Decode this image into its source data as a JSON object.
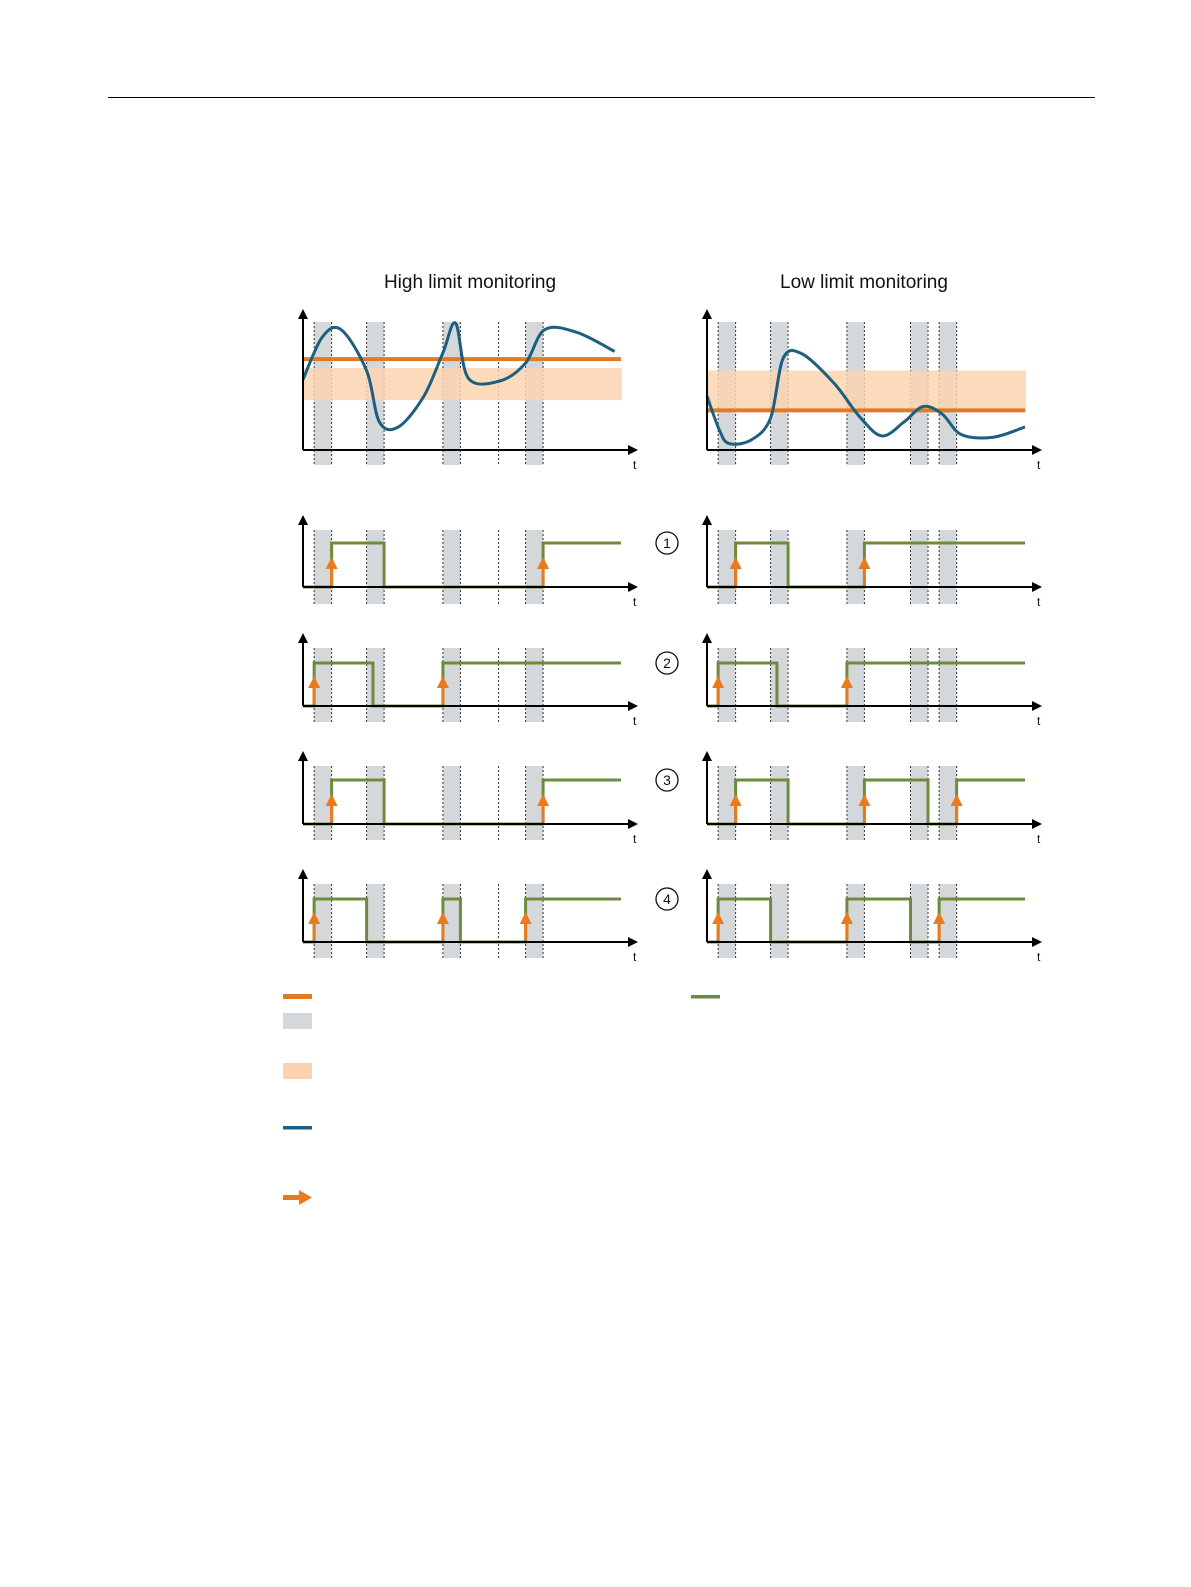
{
  "colors": {
    "limit_line": "#e07a23",
    "hysteresis_band": "#fbd3b0",
    "measured_value": "#1c5f7e",
    "output_signal": "#6e8b3d",
    "change_arrow": "#e97a1e",
    "delay_window": "#d5d8db"
  },
  "columns": [
    {
      "title": "High limit monitoring",
      "t_label": "t",
      "top_chart": {
        "band_range": [
          0.39,
          0.64
        ],
        "limit_level": 0.71,
        "windows": [
          [
            0.035,
            0.09
          ],
          [
            0.2,
            0.255
          ],
          [
            0.44,
            0.495
          ],
          [
            0.7,
            0.755
          ]
        ],
        "extra_dashed_lines": [
          0.615
        ],
        "curve": [
          [
            0.0,
            0.55
          ],
          [
            0.06,
            0.88
          ],
          [
            0.12,
            0.94
          ],
          [
            0.2,
            0.62
          ],
          [
            0.24,
            0.22
          ],
          [
            0.3,
            0.18
          ],
          [
            0.38,
            0.42
          ],
          [
            0.44,
            0.76
          ],
          [
            0.48,
            0.99
          ],
          [
            0.52,
            0.56
          ],
          [
            0.62,
            0.54
          ],
          [
            0.7,
            0.68
          ],
          [
            0.76,
            0.94
          ],
          [
            0.86,
            0.92
          ],
          [
            0.98,
            0.77
          ]
        ]
      },
      "timing_rows": [
        {
          "levels": [
            [
              0,
              0
            ],
            [
              0.09,
              1
            ],
            [
              0.255,
              0
            ],
            [
              0.755,
              1
            ],
            [
              1.0,
              1
            ]
          ],
          "arrows": [
            0.09,
            0.755
          ]
        },
        {
          "levels": [
            [
              0,
              0
            ],
            [
              0.035,
              1
            ],
            [
              0.22,
              0
            ],
            [
              0.44,
              1
            ],
            [
              1.0,
              1
            ]
          ],
          "arrows": [
            0.035,
            0.44
          ]
        },
        {
          "levels": [
            [
              0,
              0
            ],
            [
              0.09,
              1
            ],
            [
              0.255,
              0
            ],
            [
              0.755,
              1
            ],
            [
              1.0,
              1
            ]
          ],
          "arrows": [
            0.09,
            0.755
          ]
        },
        {
          "levels": [
            [
              0,
              0
            ],
            [
              0.035,
              1
            ],
            [
              0.2,
              0
            ],
            [
              0.44,
              1
            ],
            [
              0.495,
              0
            ],
            [
              0.7,
              1
            ],
            [
              1.0,
              1
            ]
          ],
          "arrows": [
            0.035,
            0.44,
            0.7
          ]
        }
      ],
      "row_windows": [
        [
          0.035,
          0.09
        ],
        [
          0.2,
          0.255
        ],
        [
          0.44,
          0.495
        ],
        [
          0.7,
          0.755
        ]
      ],
      "row_dashed_lines": [
        0.615
      ]
    },
    {
      "title": "Low limit monitoring",
      "t_label": "t",
      "top_chart": {
        "band_range": [
          0.3,
          0.62
        ],
        "limit_level": 0.31,
        "windows": [
          [
            0.035,
            0.09
          ],
          [
            0.2,
            0.255
          ],
          [
            0.44,
            0.495
          ],
          [
            0.64,
            0.695
          ],
          [
            0.73,
            0.785
          ]
        ],
        "extra_dashed_lines": [],
        "curve": [
          [
            0.0,
            0.42
          ],
          [
            0.04,
            0.15
          ],
          [
            0.07,
            0.05
          ],
          [
            0.14,
            0.08
          ],
          [
            0.2,
            0.25
          ],
          [
            0.24,
            0.72
          ],
          [
            0.3,
            0.75
          ],
          [
            0.4,
            0.52
          ],
          [
            0.48,
            0.26
          ],
          [
            0.55,
            0.11
          ],
          [
            0.62,
            0.22
          ],
          [
            0.68,
            0.34
          ],
          [
            0.74,
            0.28
          ],
          [
            0.8,
            0.12
          ],
          [
            0.9,
            0.1
          ],
          [
            1.0,
            0.18
          ]
        ]
      },
      "timing_rows": [
        {
          "levels": [
            [
              0,
              0
            ],
            [
              0.09,
              1
            ],
            [
              0.255,
              0
            ],
            [
              0.495,
              1
            ],
            [
              1.0,
              1
            ]
          ],
          "arrows": [
            0.09,
            0.495
          ]
        },
        {
          "levels": [
            [
              0,
              0
            ],
            [
              0.035,
              1
            ],
            [
              0.22,
              0
            ],
            [
              0.44,
              1
            ],
            [
              1.0,
              1
            ]
          ],
          "arrows": [
            0.035,
            0.44
          ]
        },
        {
          "levels": [
            [
              0,
              0
            ],
            [
              0.09,
              1
            ],
            [
              0.255,
              0
            ],
            [
              0.495,
              1
            ],
            [
              0.695,
              0
            ],
            [
              0.785,
              1
            ],
            [
              1.0,
              1
            ]
          ],
          "arrows": [
            0.09,
            0.495,
            0.785
          ]
        },
        {
          "levels": [
            [
              0,
              0
            ],
            [
              0.035,
              1
            ],
            [
              0.2,
              0
            ],
            [
              0.44,
              1
            ],
            [
              0.64,
              0
            ],
            [
              0.73,
              1
            ],
            [
              1.0,
              1
            ]
          ],
          "arrows": [
            0.035,
            0.44,
            0.73
          ]
        }
      ],
      "row_windows": [
        [
          0.035,
          0.09
        ],
        [
          0.2,
          0.255
        ],
        [
          0.44,
          0.495
        ],
        [
          0.64,
          0.695
        ],
        [
          0.73,
          0.785
        ]
      ],
      "row_dashed_lines": []
    }
  ],
  "row_numbers": [
    "1",
    "2",
    "3",
    "4"
  ],
  "legend": [
    {
      "symbol": "limit-line"
    },
    {
      "symbol": "output-signal"
    },
    {
      "symbol": "delay-window"
    },
    {
      "symbol": "hysteresis-band"
    },
    {
      "symbol": "measured-value"
    },
    {
      "symbol": "change-arrow"
    }
  ]
}
